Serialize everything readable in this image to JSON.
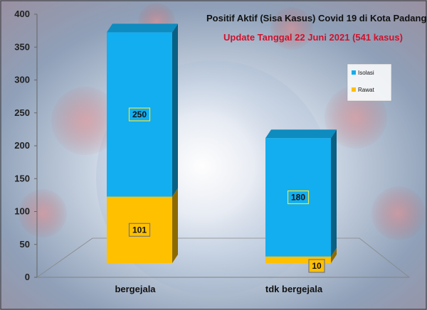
{
  "chart_data": {
    "type": "bar",
    "stacked": true,
    "three_d": true,
    "title": "Positif Aktif  (Sisa Kasus) Covid 19 di Kota Padang",
    "subtitle": "Update Tanggal 22 Juni 2021  (541 kasus)",
    "categories": [
      "bergejala",
      "tdk bergejala"
    ],
    "series": [
      {
        "name": "Rawat",
        "values": [
          101,
          10
        ],
        "color": "#FFC000"
      },
      {
        "name": "Isolasi",
        "values": [
          250,
          180
        ],
        "color": "#12AEEF"
      }
    ],
    "ylim": [
      0,
      400
    ],
    "yticks": [
      0,
      50,
      100,
      150,
      200,
      250,
      300,
      350,
      400
    ],
    "legend_position": "right",
    "legend_order": [
      "Isolasi",
      "Rawat"
    ],
    "grid": false,
    "background": "covid virus and globe photo"
  }
}
